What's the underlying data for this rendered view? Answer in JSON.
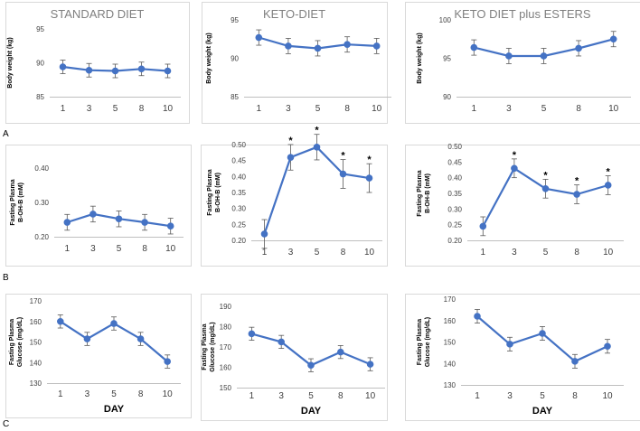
{
  "row_labels": [
    "A",
    "B",
    "C"
  ],
  "x_axis_title": "DAY",
  "colors": {
    "series": "#4472C4",
    "axis": "#bfbfbf",
    "text": "#3f3f3f",
    "title": "#7f7f7f",
    "border": "#d9d9d9"
  },
  "chart_data": [
    {
      "id": "A1",
      "type": "line",
      "title": "STANDARD DIET",
      "ylabel": "Body weight (kg)",
      "ylim": [
        85,
        95
      ],
      "yticks": [
        85,
        90,
        95
      ],
      "ytick_labels": [
        "85",
        "90",
        "95"
      ],
      "categories": [
        "1",
        "3",
        "5",
        "8",
        "10"
      ],
      "values": [
        89.4,
        88.9,
        88.8,
        89.1,
        88.8
      ],
      "errors": [
        1.0,
        1.0,
        1.0,
        1.0,
        1.0
      ],
      "sig": [
        "",
        "",
        "",
        "",
        ""
      ],
      "xlabel": ""
    },
    {
      "id": "A2",
      "type": "line",
      "title": "KETO-DIET",
      "ylabel": "Body weight (kg)",
      "ylim": [
        85,
        95
      ],
      "yticks": [
        85,
        90,
        95
      ],
      "ytick_labels": [
        "85",
        "90",
        "95"
      ],
      "categories": [
        "1",
        "3",
        "5",
        "8",
        "10"
      ],
      "values": [
        92.7,
        91.6,
        91.3,
        91.8,
        91.6
      ],
      "errors": [
        1.0,
        1.0,
        1.0,
        1.0,
        1.0
      ],
      "sig": [
        "",
        "",
        "",
        "",
        ""
      ],
      "xlabel": ""
    },
    {
      "id": "A3",
      "type": "line",
      "title": "KETO DIET plus ESTERS",
      "ylabel": "Body weight (kg)",
      "ylim": [
        90,
        100
      ],
      "yticks": [
        90,
        95,
        100
      ],
      "ytick_labels": [
        "90",
        "95",
        "100"
      ],
      "categories": [
        "1",
        "3",
        "5",
        "8",
        "10"
      ],
      "values": [
        96.4,
        95.3,
        95.3,
        96.3,
        97.5
      ],
      "errors": [
        1.0,
        1.0,
        1.0,
        1.0,
        1.0
      ],
      "sig": [
        "",
        "",
        "",
        "",
        ""
      ],
      "xlabel": ""
    },
    {
      "id": "B1",
      "type": "line",
      "title": "",
      "ylabel": "Fasting Plasma B-OH-B (mM)",
      "ylim": [
        0.2,
        0.4
      ],
      "yticks": [
        0.2,
        0.3,
        0.4
      ],
      "ytick_labels": [
        "0.20",
        "0.30",
        "0.40"
      ],
      "categories": [
        "1",
        "3",
        "5",
        "8",
        "10"
      ],
      "values": [
        0.242,
        0.266,
        0.252,
        0.242,
        0.231
      ],
      "errors": [
        0.023,
        0.023,
        0.023,
        0.023,
        0.023
      ],
      "sig": [
        "",
        "",
        "",
        "",
        ""
      ],
      "xlabel": ""
    },
    {
      "id": "B2",
      "type": "line",
      "title": "",
      "ylabel": "Fasting Plasma B-OH-B (mM)",
      "ylim": [
        0.2,
        0.5
      ],
      "yticks": [
        0.2,
        0.25,
        0.3,
        0.35,
        0.4,
        0.45,
        0.5
      ],
      "ytick_labels": [
        "0.20",
        "0.25",
        "0.30",
        "0.35",
        "0.40",
        "0.45",
        "0.50"
      ],
      "categories": [
        "1",
        "3",
        "5",
        "8",
        "10"
      ],
      "values": [
        0.22,
        0.46,
        0.492,
        0.408,
        0.395
      ],
      "errors": [
        0.045,
        0.04,
        0.04,
        0.045,
        0.045
      ],
      "sig": [
        "",
        "*",
        "*",
        "*",
        "*"
      ],
      "xlabel": ""
    },
    {
      "id": "B3",
      "type": "line",
      "title": "",
      "ylabel": "Fasting Plasma B-OH-B (mM)",
      "ylim": [
        0.2,
        0.5
      ],
      "yticks": [
        0.2,
        0.25,
        0.3,
        0.35,
        0.4,
        0.45,
        0.5
      ],
      "ytick_labels": [
        "0.20",
        "0.25",
        "0.30",
        "0.35",
        "0.40",
        "0.45",
        "0.50"
      ],
      "categories": [
        "1",
        "3",
        "5",
        "8",
        "10"
      ],
      "values": [
        0.245,
        0.43,
        0.365,
        0.347,
        0.376
      ],
      "errors": [
        0.03,
        0.03,
        0.03,
        0.03,
        0.03
      ],
      "sig": [
        "",
        "*",
        "*",
        "*",
        "*"
      ],
      "xlabel": ""
    },
    {
      "id": "C1",
      "type": "line",
      "title": "",
      "ylabel": "Fasting Plasma Glucose (mg/dL)",
      "ylim": [
        130,
        170
      ],
      "yticks": [
        130,
        140,
        150,
        160,
        170
      ],
      "ytick_labels": [
        "130",
        "140",
        "150",
        "160",
        "170"
      ],
      "categories": [
        "1",
        "3",
        "5",
        "8",
        "10"
      ],
      "values": [
        160,
        151.5,
        159,
        151.5,
        140.5
      ],
      "errors": [
        3.2,
        3.2,
        3.2,
        3.2,
        3.2
      ],
      "sig": [
        "",
        "",
        "",
        "",
        ""
      ],
      "xlabel": "DAY"
    },
    {
      "id": "C2",
      "type": "line",
      "title": "",
      "ylabel": "Fasting Plasma Glucose (mg/dL)",
      "ylim": [
        150,
        190
      ],
      "yticks": [
        150,
        160,
        170,
        180,
        190
      ],
      "ytick_labels": [
        "150",
        "160",
        "170",
        "180",
        "190"
      ],
      "categories": [
        "1",
        "3",
        "5",
        "8",
        "10"
      ],
      "values": [
        176.5,
        172.5,
        161,
        167.5,
        161.5
      ],
      "errors": [
        3.2,
        3.2,
        3.2,
        3.2,
        3.2
      ],
      "sig": [
        "",
        "",
        "",
        "",
        ""
      ],
      "xlabel": "DAY"
    },
    {
      "id": "C3",
      "type": "line",
      "title": "",
      "ylabel": "Fasting Plasma Glucose (mg/dL)",
      "ylim": [
        130,
        170
      ],
      "yticks": [
        130,
        140,
        150,
        160,
        170
      ],
      "ytick_labels": [
        "130",
        "140",
        "150",
        "160",
        "170"
      ],
      "categories": [
        "1",
        "3",
        "5",
        "8",
        "10"
      ],
      "values": [
        162,
        149,
        154,
        141,
        148
      ],
      "errors": [
        3.2,
        3.2,
        3.2,
        3.2,
        3.2
      ],
      "sig": [
        "",
        "",
        "",
        "",
        ""
      ],
      "xlabel": "DAY"
    }
  ]
}
